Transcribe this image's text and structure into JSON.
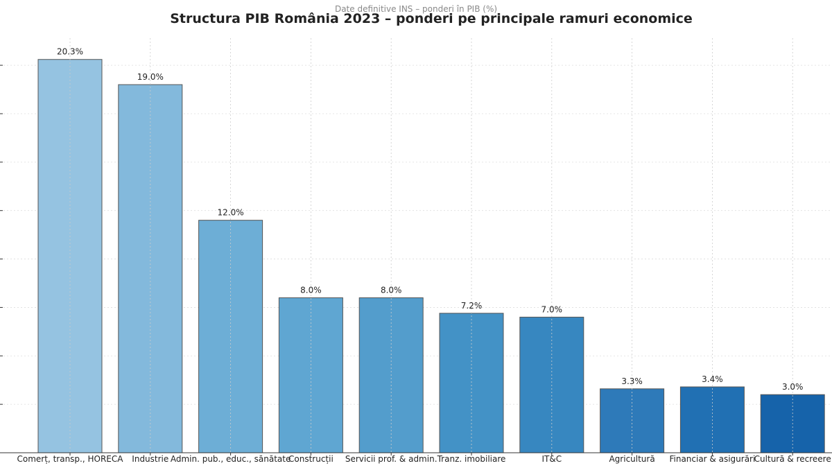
{
  "chart_data": {
    "type": "bar",
    "title": "Structura PIB România 2023 – ponderi pe principale ramuri economice",
    "subtitle": "Date definitive INS – ponderi în PIB (%)",
    "xlabel": "",
    "ylabel": "",
    "ylim": [
      0,
      21.4
    ],
    "ytick_step": 2.5,
    "grid": true,
    "categories": [
      "Comerț, transp., HORECA",
      "Industrie",
      "Admin. pub., educ., sănătate",
      "Construcții",
      "Servicii prof. & admin.",
      "Tranz. imobiliare",
      "IT&C",
      "Agricultură",
      "Financiar & asigurări",
      "Cultură & recreere"
    ],
    "values": [
      20.3,
      19.0,
      12.0,
      8.0,
      8.0,
      7.2,
      7.0,
      3.3,
      3.4,
      3.0
    ],
    "data_labels": [
      "20.3%",
      "19.0%",
      "12.0%",
      "8.0%",
      "8.0%",
      "7.2%",
      "7.0%",
      "3.3%",
      "3.4%",
      "3.0%"
    ],
    "colors": [
      "#95c3e1",
      "#83b9dc",
      "#6daed6",
      "#5fa6d2",
      "#539dcc",
      "#4392c6",
      "#3787c0",
      "#2e7ab9",
      "#2170b3",
      "#1663aa"
    ]
  }
}
